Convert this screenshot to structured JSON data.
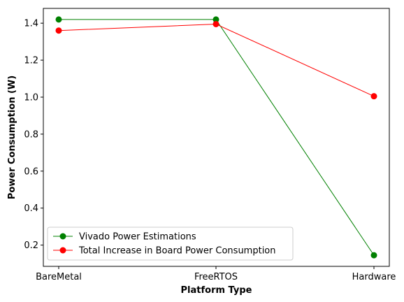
{
  "chart_data": {
    "type": "line",
    "categories": [
      "BareMetal",
      "FreeRTOS",
      "Hardware"
    ],
    "series": [
      {
        "name": "Vivado Power Estimations",
        "values": [
          1.42,
          1.42,
          0.145
        ],
        "color": "#008000"
      },
      {
        "name": "Total Increase in Board Power Consumption",
        "values": [
          1.36,
          1.395,
          1.005
        ],
        "color": "#ff0000"
      }
    ],
    "xlabel": "Platform Type",
    "ylabel": "Power Consumption (W)",
    "ylim": [
      0.085,
      1.48
    ],
    "yticks": [
      0.2,
      0.4,
      0.6,
      0.8,
      1.0,
      1.2,
      1.4
    ],
    "ytick_labels": [
      "0.2",
      "0.4",
      "0.6",
      "0.8",
      "1.0",
      "1.2",
      "1.4"
    ],
    "grid": false,
    "legend_position": "lower-left"
  }
}
